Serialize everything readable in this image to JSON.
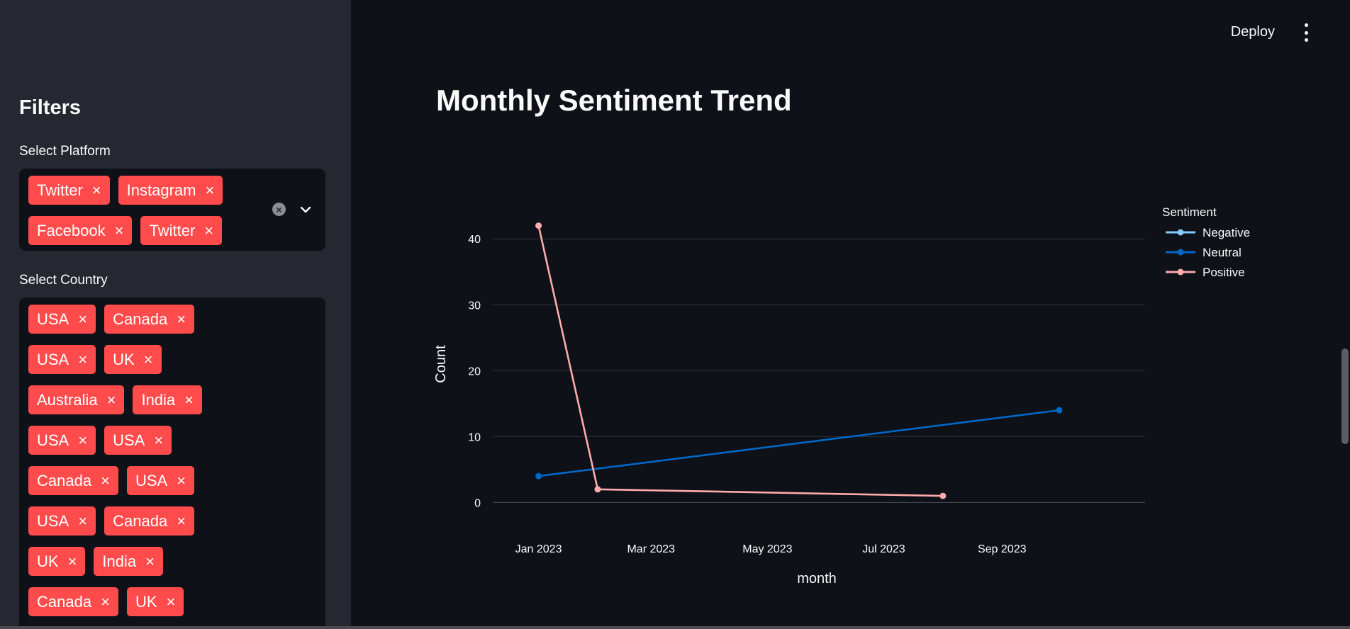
{
  "sidebar": {
    "title": "Filters",
    "platform": {
      "label": "Select Platform",
      "rows": [
        [
          "Twitter",
          "Instagram"
        ],
        [
          "Facebook",
          "Twitter"
        ]
      ]
    },
    "country": {
      "label": "Select Country",
      "rows": [
        [
          "USA",
          "Canada"
        ],
        [
          "USA",
          "UK"
        ],
        [
          "Australia",
          "India"
        ],
        [
          "USA",
          "USA"
        ],
        [
          "Canada",
          "USA"
        ],
        [
          "USA",
          "Canada"
        ],
        [
          "UK",
          "India"
        ],
        [
          "Canada",
          "UK"
        ]
      ]
    },
    "remove_glyph": "×",
    "clear_glyph": "×",
    "tag_color": "#ff4b4b"
  },
  "header": {
    "deploy_label": "Deploy",
    "menu_icon": "vertical-dots-icon"
  },
  "main": {
    "title": "Monthly Sentiment Trend"
  },
  "chart_data": {
    "type": "line",
    "title": "",
    "xlabel": "month",
    "ylabel": "Count",
    "x_ticks": [
      "Jan 2023",
      "Mar 2023",
      "May 2023",
      "Jul 2023",
      "Sep 2023"
    ],
    "y_ticks": [
      0,
      10,
      20,
      30,
      40
    ],
    "ylim": [
      -2,
      44
    ],
    "xlim": [
      "2022-12-08",
      "2023-11-15"
    ],
    "grid": true,
    "legend_title": "Sentiment",
    "legend_position": "top-right",
    "series": [
      {
        "name": "Negative",
        "color": "#83c9ff",
        "points": []
      },
      {
        "name": "Neutral",
        "color": "#0068c9",
        "points": [
          {
            "x": "2023-01-01",
            "y": 4
          },
          {
            "x": "2023-10-01",
            "y": 14
          }
        ]
      },
      {
        "name": "Positive",
        "color": "#ffabab",
        "points": [
          {
            "x": "2023-01-01",
            "y": 42
          },
          {
            "x": "2023-02-01",
            "y": 2
          },
          {
            "x": "2023-08-01",
            "y": 1
          }
        ]
      }
    ]
  }
}
